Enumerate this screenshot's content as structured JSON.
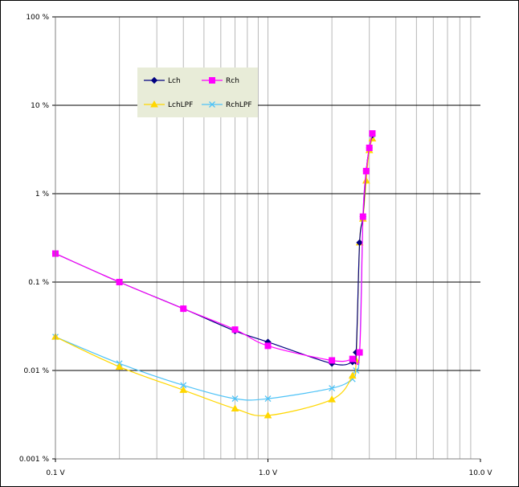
{
  "chart_data": {
    "type": "line",
    "title": "",
    "xlabel": "",
    "ylabel": "",
    "x_scale": "log",
    "y_scale": "log",
    "xlim": [
      0.1,
      10
    ],
    "ylim": [
      0.001,
      100
    ],
    "grid": true,
    "legend_position": "top-left (inside plot)",
    "x_tick_labels": [
      {
        "value": 0.1,
        "label": "0.1 V"
      },
      {
        "value": 1,
        "label": "1.0 V"
      },
      {
        "value": 10,
        "label": "10.0 V"
      }
    ],
    "y_tick_labels": [
      {
        "value": 100,
        "label": "100 %"
      },
      {
        "value": 10,
        "label": "10 %"
      },
      {
        "value": 1,
        "label": "1 %"
      },
      {
        "value": 0.1,
        "label": "0.1 %"
      },
      {
        "value": 0.01,
        "label": "0.01 %"
      },
      {
        "value": 0.001,
        "label": "0.001 %"
      }
    ],
    "series": [
      {
        "name": "Lch",
        "color": "#000080",
        "marker": "diamond",
        "points": [
          [
            0.1,
            0.21
          ],
          [
            0.2,
            0.1
          ],
          [
            0.4,
            0.05
          ],
          [
            0.7,
            0.028
          ],
          [
            1.0,
            0.021
          ],
          [
            2.0,
            0.012
          ],
          [
            2.5,
            0.0125
          ],
          [
            2.6,
            0.016
          ],
          [
            2.7,
            0.28
          ],
          [
            2.8,
            0.55
          ],
          [
            2.9,
            1.8
          ],
          [
            3.0,
            3.3
          ],
          [
            3.1,
            4.6
          ]
        ]
      },
      {
        "name": "Rch",
        "color": "#FF00FF",
        "marker": "square",
        "points": [
          [
            0.1,
            0.21
          ],
          [
            0.2,
            0.1
          ],
          [
            0.4,
            0.05
          ],
          [
            0.7,
            0.029
          ],
          [
            1.0,
            0.019
          ],
          [
            2.0,
            0.013
          ],
          [
            2.5,
            0.0135
          ],
          [
            2.7,
            0.016
          ],
          [
            2.8,
            0.55
          ],
          [
            2.9,
            1.8
          ],
          [
            3.0,
            3.3
          ],
          [
            3.1,
            4.8
          ]
        ]
      },
      {
        "name": "LchLPF",
        "color": "#FFD700",
        "marker": "triangle",
        "points": [
          [
            0.1,
            0.024
          ],
          [
            0.2,
            0.011
          ],
          [
            0.4,
            0.006
          ],
          [
            0.7,
            0.0037
          ],
          [
            1.0,
            0.0031
          ],
          [
            2.0,
            0.0047
          ],
          [
            2.5,
            0.0087
          ],
          [
            2.6,
            0.013
          ],
          [
            2.7,
            0.28
          ],
          [
            2.8,
            0.52
          ],
          [
            2.9,
            1.4
          ],
          [
            3.0,
            3.1
          ],
          [
            3.1,
            4.2
          ]
        ]
      },
      {
        "name": "RchLPF",
        "color": "#4FC3F7",
        "marker": "x",
        "points": [
          [
            0.1,
            0.024
          ],
          [
            0.2,
            0.012
          ],
          [
            0.4,
            0.0068
          ],
          [
            0.7,
            0.0048
          ],
          [
            1.0,
            0.0048
          ],
          [
            2.0,
            0.0063
          ],
          [
            2.5,
            0.008
          ],
          [
            2.6,
            0.01
          ],
          [
            2.7,
            0.016
          ],
          [
            2.8,
            0.55
          ],
          [
            2.9,
            1.8
          ],
          [
            3.0,
            3.3
          ],
          [
            3.1,
            4.7
          ]
        ]
      }
    ]
  }
}
